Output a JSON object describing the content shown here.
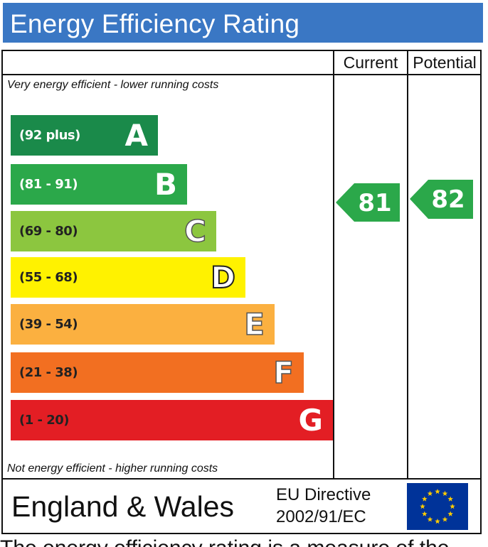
{
  "header": {
    "title": "Energy Efficiency Rating"
  },
  "columns": {
    "current": "Current",
    "potential": "Potential"
  },
  "notes": {
    "top": "Very energy efficient - lower running costs",
    "bottom": "Not energy efficient - higher running costs"
  },
  "bands": [
    {
      "range": "(92 plus)",
      "letter": "A",
      "color": "#1a8a4a"
    },
    {
      "range": "(81 - 91)",
      "letter": "B",
      "color": "#2ba84a"
    },
    {
      "range": "(69 - 80)",
      "letter": "C",
      "color": "#8cc63f"
    },
    {
      "range": "(55 - 68)",
      "letter": "D",
      "color": "#fff200"
    },
    {
      "range": "(39 - 54)",
      "letter": "E",
      "color": "#fbb040"
    },
    {
      "range": "(21 - 38)",
      "letter": "F",
      "color": "#f26f21"
    },
    {
      "range": "(1 - 20)",
      "letter": "G",
      "color": "#e31e24"
    }
  ],
  "ratings": {
    "current": {
      "value": "81",
      "band": "B",
      "color": "#2ba84a"
    },
    "potential": {
      "value": "82",
      "band": "B",
      "color": "#2ba84a"
    }
  },
  "footer": {
    "region": "England & Wales",
    "directive_line1": "EU Directive",
    "directive_line2": "2002/91/EC",
    "flag_icon": "eu-flag-icon",
    "flag_color": "#003399",
    "star_color": "#ffcc00"
  },
  "cutoff_text": "The energy efficiency rating is a measure of the"
}
